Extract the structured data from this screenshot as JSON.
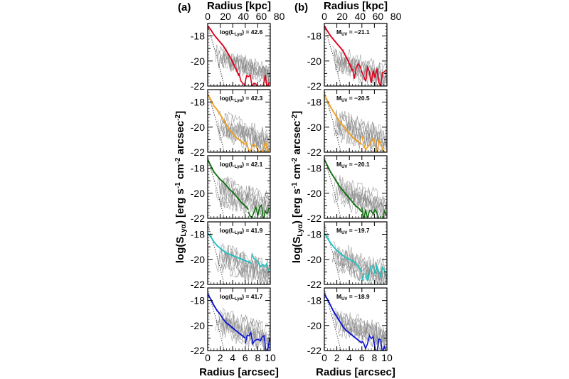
{
  "chart_data": {
    "type": "line",
    "xlim": [
      0,
      10
    ],
    "ylim": [
      -22,
      -17
    ],
    "xlabel": "Radius [arcsec]",
    "top_xlabel": "Radius [kpc]",
    "ylabel_main": "log(S",
    "ylabel_sub": "Lyα",
    "ylabel_rest": ") [erg s",
    "ylabel_m1": "-1",
    "ylabel_cm": " cm",
    "ylabel_m2": "-2",
    "ylabel_arc": " arcsec",
    "ylabel_m2b": "-2",
    "ylabel_close": "]",
    "x_ticks": [
      0,
      2,
      4,
      6,
      8,
      10
    ],
    "x_tick_labels": [
      "0",
      "2",
      "4",
      "6",
      "8",
      "10"
    ],
    "y_ticks": [
      -18,
      -20,
      -22
    ],
    "y_tick_labels": [
      "-18",
      "-20",
      "-22"
    ],
    "kpc_ticks": [
      0,
      20,
      40,
      60,
      80
    ],
    "kpc_tick_labels": [
      "0",
      "20",
      "40",
      "60",
      "80"
    ],
    "kpc_per_arcsec": 7.0,
    "panels": [
      {
        "label": "(a)",
        "rows": [
          {
            "color": "#e0001b",
            "annotation": {
              "main": "log(L",
              "sub": "Lyα",
              "rest": ") = 42.6"
            },
            "r": [
              0,
              0.5,
              1,
              1.5,
              2,
              2.5,
              3,
              3.5,
              4,
              4.5,
              5
            ],
            "y": [
              -17.2,
              -17.5,
              -17.9,
              -18.2,
              -18.5,
              -18.8,
              -19.2,
              -19.6,
              -20.1,
              -20.6,
              -21.2
            ]
          },
          {
            "color": "#f0a020",
            "annotation": {
              "main": "log(L",
              "sub": "Lyα",
              "rest": ") = 42.3"
            },
            "r": [
              0,
              0.5,
              1,
              1.5,
              2,
              2.5,
              3,
              3.5,
              4,
              4.5,
              5,
              5.5,
              6
            ],
            "y": [
              -17.4,
              -17.8,
              -18.3,
              -18.6,
              -19.0,
              -19.4,
              -19.8,
              -20.2,
              -20.5,
              -20.8,
              -21.0,
              -21.2,
              -21.4
            ]
          },
          {
            "color": "#107010",
            "annotation": {
              "main": "log(L",
              "sub": "Lyα",
              "rest": ") = 42.1"
            },
            "r": [
              0,
              0.5,
              1,
              1.5,
              2,
              2.5,
              3,
              3.5,
              4,
              4.5,
              5,
              5.5,
              6,
              6.5
            ],
            "y": [
              -17.3,
              -17.8,
              -18.3,
              -18.6,
              -18.9,
              -19.1,
              -19.4,
              -19.7,
              -19.9,
              -20.2,
              -20.5,
              -20.8,
              -21.0,
              -21.3
            ]
          },
          {
            "color": "#20c0c0",
            "annotation": {
              "main": "log(L",
              "sub": "Lyα",
              "rest": ") = 41.9"
            },
            "r": [
              0,
              0.5,
              1,
              1.5,
              2,
              2.5,
              3,
              3.5,
              4,
              4.5,
              5,
              5.5,
              6,
              6.5,
              7
            ],
            "y": [
              -17.9,
              -18.2,
              -18.6,
              -18.9,
              -19.1,
              -19.3,
              -19.5,
              -19.6,
              -19.7,
              -19.8,
              -19.9,
              -20.0,
              -20.1,
              -20.2,
              -20.3
            ]
          },
          {
            "color": "#0a14d0",
            "annotation": {
              "main": "log(L",
              "sub": "Lyα",
              "rest": ") = 41.7"
            },
            "r": [
              0,
              0.5,
              1,
              1.5,
              2,
              2.5,
              3,
              3.5,
              4,
              4.5,
              5,
              5.5,
              6
            ],
            "y": [
              -17.5,
              -17.9,
              -18.4,
              -18.8,
              -19.1,
              -19.5,
              -19.8,
              -20.0,
              -20.2,
              -20.4,
              -20.6,
              -20.8,
              -21.0
            ]
          }
        ]
      },
      {
        "label": "(b)",
        "rows": [
          {
            "color": "#e0001b",
            "annotation": {
              "main": "M",
              "sub": "UV",
              "rest": " = −21.1"
            },
            "r": [
              0,
              0.5,
              1,
              1.5,
              2,
              2.5,
              3,
              3.5,
              4,
              4.5
            ],
            "y": [
              -17.2,
              -17.6,
              -18.0,
              -18.3,
              -18.6,
              -18.9,
              -19.2,
              -19.7,
              -20.2,
              -20.8
            ]
          },
          {
            "color": "#f0a020",
            "annotation": {
              "main": "M",
              "sub": "UV",
              "rest": " = −20.5"
            },
            "r": [
              0,
              0.5,
              1,
              1.5,
              2,
              2.5,
              3,
              3.5,
              4,
              4.5,
              5,
              5.5,
              6
            ],
            "y": [
              -17.4,
              -17.9,
              -18.4,
              -18.8,
              -19.2,
              -19.6,
              -19.9,
              -20.2,
              -20.5,
              -20.8,
              -21.0,
              -21.2,
              -21.4
            ]
          },
          {
            "color": "#107010",
            "annotation": {
              "main": "M",
              "sub": "UV",
              "rest": " = −20.1"
            },
            "r": [
              0,
              0.5,
              1,
              1.5,
              2,
              2.5,
              3,
              3.5,
              4,
              4.5,
              5,
              5.5,
              6
            ],
            "y": [
              -17.3,
              -17.8,
              -18.3,
              -18.7,
              -19.1,
              -19.5,
              -19.8,
              -20.1,
              -20.4,
              -20.7,
              -21.0,
              -21.2,
              -21.5
            ]
          },
          {
            "color": "#20c0c0",
            "annotation": {
              "main": "M",
              "sub": "UV",
              "rest": " = −19.7"
            },
            "r": [
              0,
              0.5,
              1,
              1.5,
              2,
              2.5,
              3,
              3.5,
              4,
              4.5,
              5,
              5.5,
              6
            ],
            "y": [
              -17.9,
              -18.3,
              -18.7,
              -19.0,
              -19.3,
              -19.5,
              -19.7,
              -19.9,
              -20.0,
              -20.1,
              -20.3,
              -20.6,
              -21.0
            ]
          },
          {
            "color": "#0a14d0",
            "annotation": {
              "main": "M",
              "sub": "UV",
              "rest": " = −18.9"
            },
            "r": [
              0,
              0.5,
              1,
              1.5,
              2,
              2.5,
              3,
              3.5,
              4,
              4.5,
              5,
              5.5,
              6
            ],
            "y": [
              -17.5,
              -17.9,
              -18.4,
              -18.9,
              -19.3,
              -19.7,
              -20.1,
              -20.4,
              -20.6,
              -20.8,
              -21.0,
              -21.2,
              -21.4
            ]
          }
        ]
      }
    ]
  }
}
